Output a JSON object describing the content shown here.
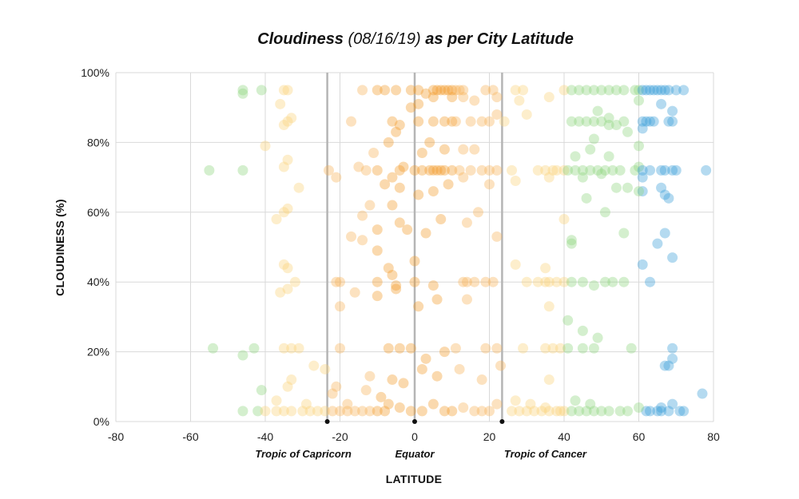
{
  "chart_data": {
    "type": "scatter",
    "title": "Cloudiness",
    "title_date": "(08/16/19)",
    "title_suffix": "as per City Latitude",
    "xlabel": "LATITUDE",
    "ylabel": "CLOUDINESS (%)",
    "xlim": [
      -80,
      80
    ],
    "ylim": [
      0,
      100
    ],
    "x_ticks": [
      -80,
      -60,
      -40,
      -20,
      0,
      20,
      40,
      60,
      80
    ],
    "y_ticks": [
      0,
      20,
      40,
      60,
      80,
      100
    ],
    "y_tick_labels": [
      "0%",
      "20%",
      "40%",
      "60%",
      "80%",
      "100%"
    ],
    "grid": true,
    "reference_lines": [
      {
        "label": "Tropic of Capricorn",
        "x": -23.4
      },
      {
        "label": "Equator",
        "x": 0
      },
      {
        "label": "Tropic of Cancer",
        "x": 23.4
      }
    ],
    "color_bands": [
      {
        "max_abs_lat": 10,
        "color": "#f39c2b"
      },
      {
        "max_abs_lat": 23.4,
        "color": "#f7b35a"
      },
      {
        "max_abs_lat": 40,
        "color": "#f9d37a"
      },
      {
        "max_abs_lat": 60,
        "color": "#8fd67f"
      },
      {
        "max_abs_lat": 90,
        "color": "#3a9fd8"
      }
    ],
    "points": [
      [
        -46,
        94
      ],
      [
        -46,
        95
      ],
      [
        -41,
        95
      ],
      [
        -36,
        91
      ],
      [
        -35,
        95
      ],
      [
        -34,
        95
      ],
      [
        -33,
        87
      ],
      [
        -35,
        85
      ],
      [
        -34,
        86
      ],
      [
        -40,
        79
      ],
      [
        -55,
        72
      ],
      [
        -46,
        72
      ],
      [
        -35,
        73
      ],
      [
        -34,
        75
      ],
      [
        -31,
        67
      ],
      [
        -23,
        72
      ],
      [
        -21,
        70
      ],
      [
        -34,
        61
      ],
      [
        -35,
        60
      ],
      [
        -37,
        58
      ],
      [
        -35,
        45
      ],
      [
        -34,
        44
      ],
      [
        -32,
        40
      ],
      [
        -34,
        38
      ],
      [
        -36,
        37
      ],
      [
        -20,
        40
      ],
      [
        -21,
        40
      ],
      [
        -20,
        33
      ],
      [
        -54,
        21
      ],
      [
        -46,
        19
      ],
      [
        -43,
        21
      ],
      [
        -35,
        21
      ],
      [
        -33,
        21
      ],
      [
        -31,
        21
      ],
      [
        -20,
        21
      ],
      [
        -27,
        16
      ],
      [
        -24,
        15
      ],
      [
        -33,
        12
      ],
      [
        -41,
        9
      ],
      [
        -34,
        10
      ],
      [
        -21,
        10
      ],
      [
        -22,
        8
      ],
      [
        -37,
        6
      ],
      [
        -29,
        5
      ],
      [
        -18,
        5
      ],
      [
        -46,
        3
      ],
      [
        -42,
        3
      ],
      [
        -40,
        3
      ],
      [
        -37,
        3
      ],
      [
        -35,
        3
      ],
      [
        -33,
        3
      ],
      [
        -30,
        3
      ],
      [
        -28,
        3
      ],
      [
        -26,
        3
      ],
      [
        -24,
        3
      ],
      [
        -22,
        3
      ],
      [
        -20,
        3
      ],
      [
        -18,
        3
      ],
      [
        -16,
        3
      ],
      [
        -14,
        3
      ],
      [
        -12,
        3
      ],
      [
        -10,
        3
      ],
      [
        -8,
        3
      ],
      [
        -14,
        95
      ],
      [
        -10,
        95
      ],
      [
        -8,
        95
      ],
      [
        -5,
        95
      ],
      [
        -1,
        95
      ],
      [
        1,
        95
      ],
      [
        3,
        94
      ],
      [
        5,
        95
      ],
      [
        6,
        95
      ],
      [
        7,
        95
      ],
      [
        8,
        95
      ],
      [
        9,
        95
      ],
      [
        10,
        95
      ],
      [
        11,
        95
      ],
      [
        12,
        95
      ],
      [
        13,
        95
      ],
      [
        19,
        95
      ],
      [
        21,
        95
      ],
      [
        22,
        93
      ],
      [
        -1,
        90
      ],
      [
        1,
        91
      ],
      [
        5,
        93
      ],
      [
        10,
        93
      ],
      [
        13,
        93
      ],
      [
        16,
        92
      ],
      [
        -17,
        86
      ],
      [
        -6,
        86
      ],
      [
        -4,
        85
      ],
      [
        1,
        86
      ],
      [
        5,
        86
      ],
      [
        8,
        86
      ],
      [
        10,
        86
      ],
      [
        11,
        86
      ],
      [
        15,
        86
      ],
      [
        18,
        86
      ],
      [
        20,
        86
      ],
      [
        22,
        88
      ],
      [
        24,
        86
      ],
      [
        -11,
        77
      ],
      [
        -7,
        80
      ],
      [
        -5,
        83
      ],
      [
        4,
        80
      ],
      [
        8,
        78
      ],
      [
        13,
        78
      ],
      [
        16,
        78
      ],
      [
        -15,
        73
      ],
      [
        -13,
        72
      ],
      [
        -10,
        72
      ],
      [
        -6,
        70
      ],
      [
        -4,
        72
      ],
      [
        0,
        72
      ],
      [
        2,
        72
      ],
      [
        4,
        72
      ],
      [
        5,
        72
      ],
      [
        6,
        72
      ],
      [
        7,
        72
      ],
      [
        8,
        72
      ],
      [
        10,
        72
      ],
      [
        12,
        72
      ],
      [
        15,
        72
      ],
      [
        18,
        72
      ],
      [
        20,
        72
      ],
      [
        22,
        72
      ],
      [
        -3,
        73
      ],
      [
        2,
        77
      ],
      [
        -8,
        68
      ],
      [
        -4,
        67
      ],
      [
        1,
        65
      ],
      [
        5,
        66
      ],
      [
        9,
        68
      ],
      [
        13,
        70
      ],
      [
        20,
        68
      ],
      [
        -17,
        53
      ],
      [
        -14,
        59
      ],
      [
        -12,
        62
      ],
      [
        -10,
        55
      ],
      [
        -6,
        62
      ],
      [
        -4,
        57
      ],
      [
        -2,
        55
      ],
      [
        3,
        54
      ],
      [
        7,
        58
      ],
      [
        14,
        57
      ],
      [
        17,
        60
      ],
      [
        22,
        53
      ],
      [
        -14,
        52
      ],
      [
        -10,
        49
      ],
      [
        -7,
        44
      ],
      [
        -6,
        42
      ],
      [
        0,
        46
      ],
      [
        -10,
        40
      ],
      [
        -5,
        39
      ],
      [
        0,
        40
      ],
      [
        5,
        39
      ],
      [
        13,
        40
      ],
      [
        14,
        40
      ],
      [
        16,
        40
      ],
      [
        19,
        40
      ],
      [
        21,
        40
      ],
      [
        -16,
        37
      ],
      [
        -10,
        36
      ],
      [
        -5,
        38
      ],
      [
        1,
        33
      ],
      [
        6,
        35
      ],
      [
        14,
        35
      ],
      [
        -7,
        21
      ],
      [
        -4,
        21
      ],
      [
        -1,
        21
      ],
      [
        3,
        18
      ],
      [
        8,
        20
      ],
      [
        11,
        21
      ],
      [
        19,
        21
      ],
      [
        22,
        21
      ],
      [
        -12,
        13
      ],
      [
        -6,
        12
      ],
      [
        -3,
        11
      ],
      [
        2,
        15
      ],
      [
        6,
        13
      ],
      [
        12,
        15
      ],
      [
        18,
        12
      ],
      [
        23,
        16
      ],
      [
        -13,
        9
      ],
      [
        -9,
        7
      ],
      [
        -7,
        5
      ],
      [
        -4,
        4
      ],
      [
        -1,
        3
      ],
      [
        2,
        3
      ],
      [
        5,
        5
      ],
      [
        8,
        3
      ],
      [
        10,
        3
      ],
      [
        13,
        4
      ],
      [
        16,
        3
      ],
      [
        18,
        3
      ],
      [
        20,
        3
      ],
      [
        22,
        5
      ],
      [
        27,
        95
      ],
      [
        29,
        95
      ],
      [
        36,
        93
      ],
      [
        28,
        92
      ],
      [
        30,
        88
      ],
      [
        26,
        72
      ],
      [
        35,
        72
      ],
      [
        37,
        72
      ],
      [
        38,
        72
      ],
      [
        40,
        72
      ],
      [
        27,
        69
      ],
      [
        33,
        72
      ],
      [
        36,
        70
      ],
      [
        27,
        45
      ],
      [
        35,
        44
      ],
      [
        30,
        40
      ],
      [
        33,
        40
      ],
      [
        35,
        40
      ],
      [
        36,
        40
      ],
      [
        38,
        40
      ],
      [
        36,
        33
      ],
      [
        29,
        21
      ],
      [
        35,
        21
      ],
      [
        37,
        21
      ],
      [
        36,
        12
      ],
      [
        26,
        3
      ],
      [
        28,
        3
      ],
      [
        30,
        3
      ],
      [
        32,
        3
      ],
      [
        34,
        3
      ],
      [
        36,
        3
      ],
      [
        38,
        3
      ],
      [
        39,
        3
      ],
      [
        27,
        6
      ],
      [
        31,
        5
      ],
      [
        35,
        4
      ],
      [
        40,
        95
      ],
      [
        42,
        95
      ],
      [
        44,
        95
      ],
      [
        46,
        95
      ],
      [
        48,
        95
      ],
      [
        50,
        95
      ],
      [
        52,
        95
      ],
      [
        54,
        95
      ],
      [
        56,
        95
      ],
      [
        49,
        89
      ],
      [
        52,
        87
      ],
      [
        42,
        86
      ],
      [
        44,
        86
      ],
      [
        46,
        86
      ],
      [
        48,
        86
      ],
      [
        50,
        86
      ],
      [
        52,
        85
      ],
      [
        54,
        85
      ],
      [
        56,
        86
      ],
      [
        57,
        83
      ],
      [
        48,
        81
      ],
      [
        47,
        78
      ],
      [
        43,
        76
      ],
      [
        52,
        76
      ],
      [
        41,
        72
      ],
      [
        43,
        72
      ],
      [
        45,
        72
      ],
      [
        47,
        72
      ],
      [
        49,
        72
      ],
      [
        51,
        72
      ],
      [
        53,
        72
      ],
      [
        55,
        72
      ],
      [
        45,
        70
      ],
      [
        50,
        71
      ],
      [
        54,
        67
      ],
      [
        57,
        67
      ],
      [
        46,
        64
      ],
      [
        51,
        60
      ],
      [
        40,
        58
      ],
      [
        56,
        54
      ],
      [
        42,
        52
      ],
      [
        42,
        51
      ],
      [
        40,
        40
      ],
      [
        42,
        40
      ],
      [
        45,
        40
      ],
      [
        48,
        39
      ],
      [
        51,
        40
      ],
      [
        53,
        40
      ],
      [
        56,
        40
      ],
      [
        41,
        29
      ],
      [
        45,
        26
      ],
      [
        49,
        24
      ],
      [
        39,
        21
      ],
      [
        41,
        21
      ],
      [
        45,
        21
      ],
      [
        48,
        21
      ],
      [
        43,
        6
      ],
      [
        40,
        3
      ],
      [
        42,
        3
      ],
      [
        44,
        3
      ],
      [
        46,
        3
      ],
      [
        48,
        3
      ],
      [
        50,
        3
      ],
      [
        52,
        3
      ],
      [
        55,
        3
      ],
      [
        57,
        3
      ],
      [
        47,
        5
      ],
      [
        59,
        95
      ],
      [
        60,
        95
      ],
      [
        61,
        95
      ],
      [
        62,
        95
      ],
      [
        63,
        95
      ],
      [
        64,
        95
      ],
      [
        65,
        95
      ],
      [
        66,
        95
      ],
      [
        67,
        95
      ],
      [
        68,
        95
      ],
      [
        70,
        95
      ],
      [
        72,
        95
      ],
      [
        60,
        92
      ],
      [
        66,
        91
      ],
      [
        69,
        89
      ],
      [
        61,
        86
      ],
      [
        62,
        86
      ],
      [
        63,
        86
      ],
      [
        64,
        86
      ],
      [
        68,
        86
      ],
      [
        69,
        86
      ],
      [
        61,
        84
      ],
      [
        60,
        79
      ],
      [
        59,
        72
      ],
      [
        60,
        73
      ],
      [
        61,
        72
      ],
      [
        63,
        72
      ],
      [
        66,
        72
      ],
      [
        67,
        72
      ],
      [
        69,
        72
      ],
      [
        70,
        72
      ],
      [
        78,
        72
      ],
      [
        61,
        70
      ],
      [
        61,
        66
      ],
      [
        66,
        67
      ],
      [
        67,
        65
      ],
      [
        68,
        64
      ],
      [
        60,
        66
      ],
      [
        67,
        54
      ],
      [
        65,
        51
      ],
      [
        69,
        47
      ],
      [
        61,
        45
      ],
      [
        63,
        40
      ],
      [
        58,
        21
      ],
      [
        69,
        21
      ],
      [
        69,
        18
      ],
      [
        67,
        16
      ],
      [
        68,
        16
      ],
      [
        77,
        8
      ],
      [
        69,
        5
      ],
      [
        62,
        3
      ],
      [
        63,
        3
      ],
      [
        65,
        3
      ],
      [
        66,
        3
      ],
      [
        68,
        3
      ],
      [
        71,
        3
      ],
      [
        72,
        3
      ],
      [
        60,
        4
      ],
      [
        66,
        4
      ]
    ]
  }
}
